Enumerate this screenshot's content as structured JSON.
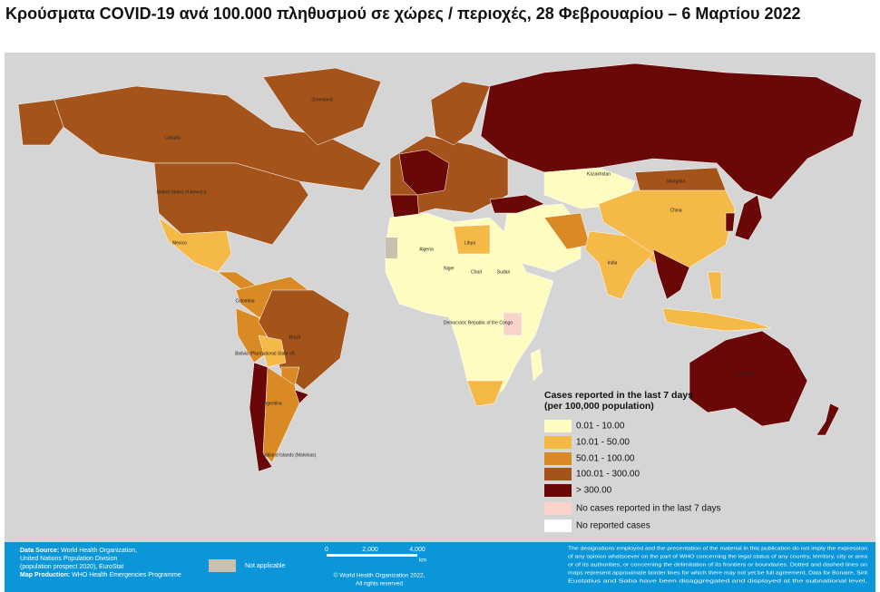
{
  "header": {
    "title": "Κρούσματα COVID-19 ανά 100.000 πληθυσμού σε χώρες / περιοχές, 28 Φεβρουαρίου – 6 Μαρτίου 2022"
  },
  "legend": {
    "title_lines": [
      "Cases reported in the last 7 days",
      "(per 100,000 population)"
    ],
    "items": [
      {
        "label": "0.01 - 10.00",
        "color": "#fffcc2"
      },
      {
        "label": "10.01 - 50.00",
        "color": "#f5b947"
      },
      {
        "label": "50.01 - 100.00",
        "color": "#d98a25"
      },
      {
        "label": "100.01 - 300.00",
        "color": "#a4541b"
      },
      {
        "label": "> 300.00",
        "color": "#6a0707"
      },
      {
        "label": "No cases reported in the last 7 days",
        "color": "#f9d3c9"
      },
      {
        "label": "No reported cases",
        "color": "#ffffff"
      }
    ]
  },
  "not_applicable": {
    "label": "Not applicable",
    "color": "#c9c1ae"
  },
  "map_labels": [
    "Canada",
    "United States of America",
    "Greenland",
    "Mexico",
    "Colombia",
    "Brazil",
    "Bolivia (Plurinational State of)",
    "Argentina",
    "Algeria",
    "Libya",
    "Niger",
    "Chad",
    "Sudan",
    "Democratic Republic of the Congo",
    "Kazakhstan",
    "Mongolia",
    "China",
    "India",
    "Australia",
    "Falkland Islands (Malvinas)"
  ],
  "footer": {
    "source_lines": [
      {
        "label": "Data Source:",
        "text": " World Health Organization,"
      },
      {
        "label": "",
        "text": "United Nations Population Division"
      },
      {
        "label": "",
        "text": "(population prospect 2020), EuroStat"
      },
      {
        "label": "Map Production:",
        "text": " WHO Health Emergencies Programme"
      }
    ],
    "scale": {
      "ticks": [
        "0",
        "2,000",
        "4,000"
      ],
      "unit": "km"
    },
    "copyright_lines": [
      "© World Health Organization  2022,",
      "All rights reserved"
    ],
    "disclaimer_lines": [
      "The designations employed and the presentation of the material in this publication do not imply the expression",
      "of any opinion whatsoever on the part of WHO concerning the legal status of any country, territory, city or area",
      "or of its authorities, or concerning the delimitation of its frontiers or boundaries. Dotted and dashed lines on",
      "maps represent approximate border lines for which there may not yet be full agreement. Data for Bonaire, Sint",
      "Eustatius and Saba have been disaggregated and displayed at the subnational level."
    ]
  }
}
